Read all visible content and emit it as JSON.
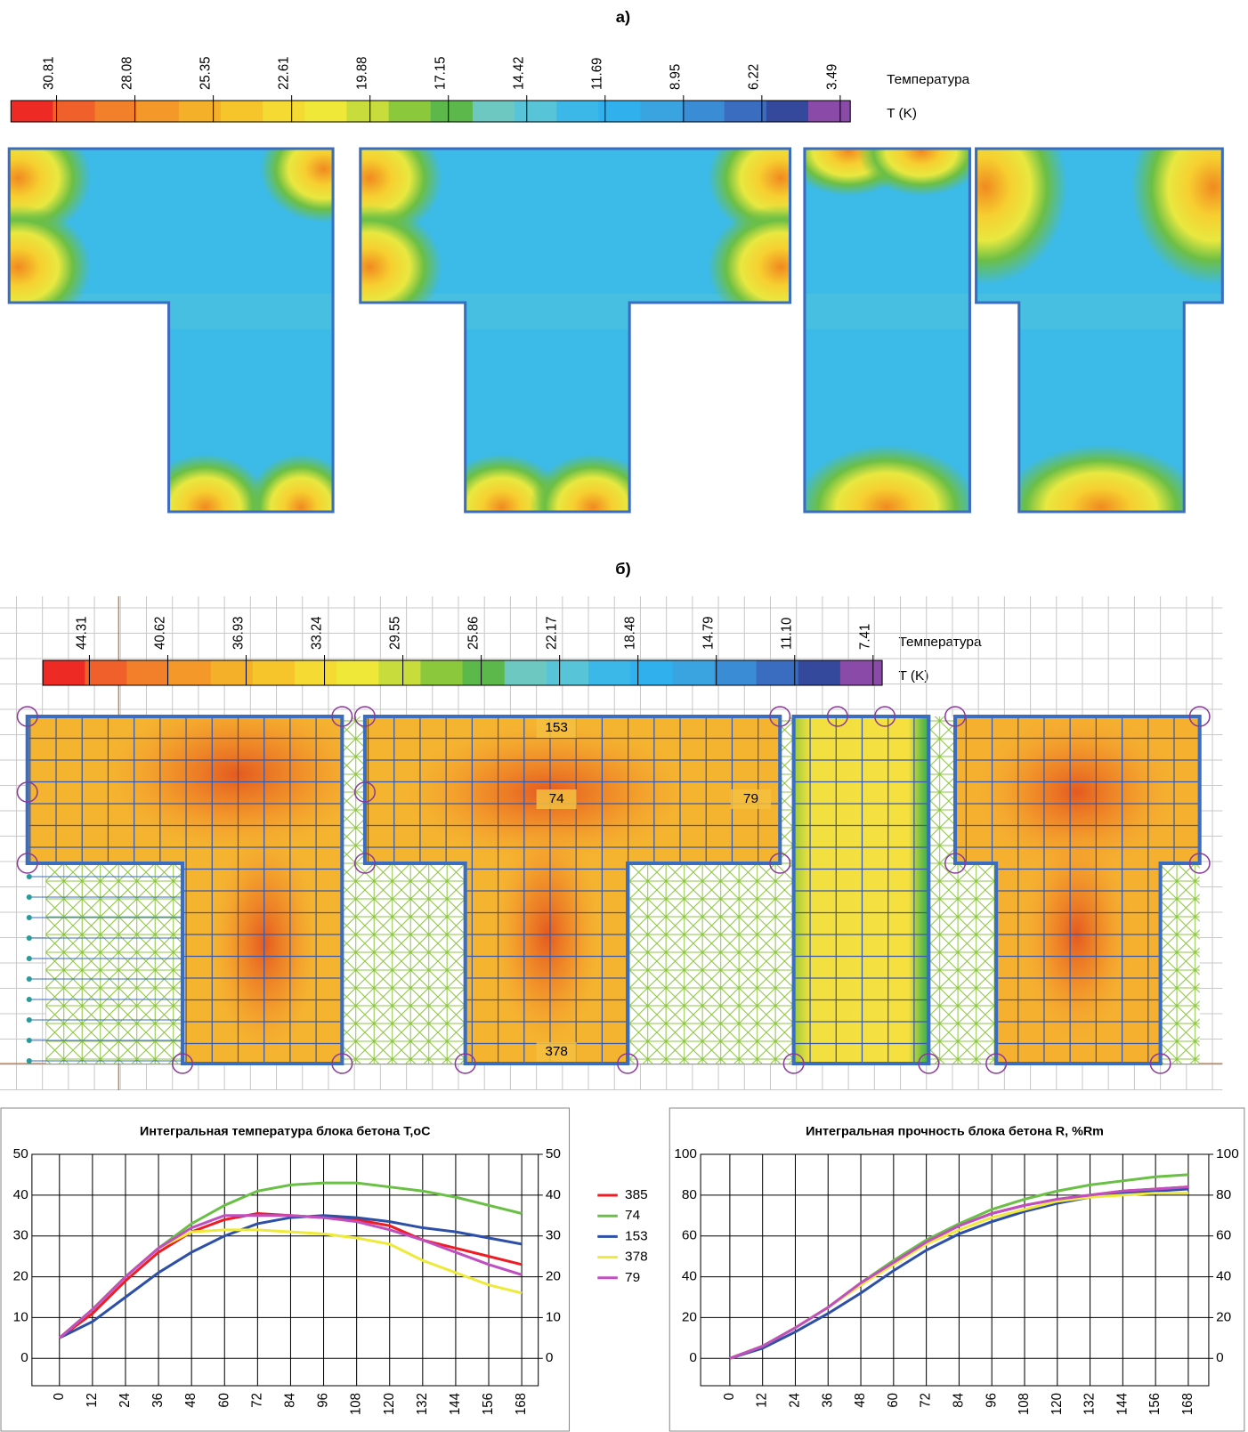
{
  "panel_a": {
    "label": "а)",
    "colorbar": {
      "labels": [
        "30.81",
        "28.08",
        "25.35",
        "22.61",
        "19.88",
        "17.15",
        "14.42",
        "11.69",
        "8.95",
        "6.22",
        "3.49"
      ],
      "title": "Температура",
      "unit": "T (K)"
    }
  },
  "panel_b": {
    "label": "б)",
    "colorbar": {
      "labels": [
        "44.31",
        "40.62",
        "36.93",
        "33.24",
        "29.55",
        "25.86",
        "22.17",
        "18.48",
        "14.79",
        "11.10",
        "7.41"
      ],
      "title": "Температура",
      "unit": "T (K)"
    },
    "point_labels": [
      "153",
      "74",
      "79",
      "378"
    ]
  },
  "chart_data": [
    {
      "type": "line",
      "title": "Интегральная температура блока бетона T,oC",
      "x": [
        0,
        12,
        24,
        36,
        48,
        60,
        72,
        84,
        96,
        108,
        120,
        132,
        144,
        156,
        168
      ],
      "xlim": [
        -10,
        174
      ],
      "xticks": [
        0,
        12,
        24,
        36,
        48,
        60,
        72,
        84,
        96,
        108,
        120,
        132,
        144,
        156,
        168
      ],
      "ylim": [
        -6.7,
        50
      ],
      "yticks": [
        0,
        10,
        20,
        30,
        40,
        50
      ],
      "y2lim": [
        -6.7,
        50
      ],
      "y2ticks": [
        0,
        10,
        20,
        30,
        40,
        50
      ],
      "grid": true,
      "series": [
        {
          "name": "385",
          "color": "#ee1c25",
          "values": [
            5,
            11,
            19,
            26,
            31,
            34,
            35.5,
            35,
            34.5,
            34,
            32.5,
            29,
            27,
            25,
            23
          ]
        },
        {
          "name": "74",
          "color": "#6abf45",
          "values": [
            5,
            12,
            20,
            27,
            33,
            37.5,
            41,
            42.5,
            43,
            43,
            42,
            41,
            39.5,
            37.5,
            35.5
          ]
        },
        {
          "name": "153",
          "color": "#2e4fa8",
          "values": [
            5,
            9,
            15,
            21,
            26,
            30,
            33,
            34.5,
            35,
            34.5,
            33.5,
            32,
            31,
            29.5,
            28
          ]
        },
        {
          "name": "378",
          "color": "#eeea3a",
          "values": [
            5,
            12,
            20,
            27,
            31,
            31.5,
            31.5,
            31,
            30.5,
            29.5,
            28,
            24,
            21,
            18,
            16
          ]
        },
        {
          "name": "79",
          "color": "#c04fc0",
          "values": [
            5,
            12,
            20,
            27,
            32,
            35,
            35,
            35,
            34.5,
            33.5,
            31.5,
            29,
            26,
            23,
            20.5
          ]
        }
      ]
    },
    {
      "type": "line",
      "title": "Интегральная прочность блока бетона R, %Rm",
      "x": [
        0,
        12,
        24,
        36,
        48,
        60,
        72,
        84,
        96,
        108,
        120,
        132,
        144,
        156,
        168
      ],
      "xlim": [
        -10.7,
        175.5
      ],
      "xticks": [
        0,
        12,
        24,
        36,
        48,
        60,
        72,
        84,
        96,
        108,
        120,
        132,
        144,
        156,
        168
      ],
      "ylim": [
        -13.4,
        100
      ],
      "yticks": [
        0,
        20,
        40,
        60,
        80,
        100
      ],
      "y2lim": [
        -13.4,
        100
      ],
      "y2ticks": [
        0,
        20,
        40,
        60,
        80,
        100
      ],
      "grid": true,
      "series": [
        {
          "color": "#ee1c25",
          "values": [
            0,
            6,
            15,
            25,
            36,
            47,
            57,
            65,
            71,
            75,
            78,
            80,
            82,
            83,
            84
          ]
        },
        {
          "color": "#6abf45",
          "values": [
            0,
            6,
            15,
            25,
            37,
            48,
            58,
            66,
            73,
            78,
            82,
            85,
            87,
            89,
            90
          ]
        },
        {
          "color": "#2e4fa8",
          "values": [
            0,
            5,
            13,
            22,
            32,
            43,
            53,
            61,
            67,
            72,
            76,
            79,
            81,
            82,
            83
          ]
        },
        {
          "color": "#eeea3a",
          "values": [
            0,
            6,
            15,
            25,
            36,
            46,
            56,
            63,
            69,
            73,
            77,
            79,
            80,
            81,
            81
          ]
        },
        {
          "color": "#c04fc0",
          "values": [
            0,
            6,
            15,
            25,
            37,
            47,
            57,
            65,
            71,
            75,
            78,
            80,
            82,
            83,
            84
          ]
        }
      ]
    }
  ]
}
